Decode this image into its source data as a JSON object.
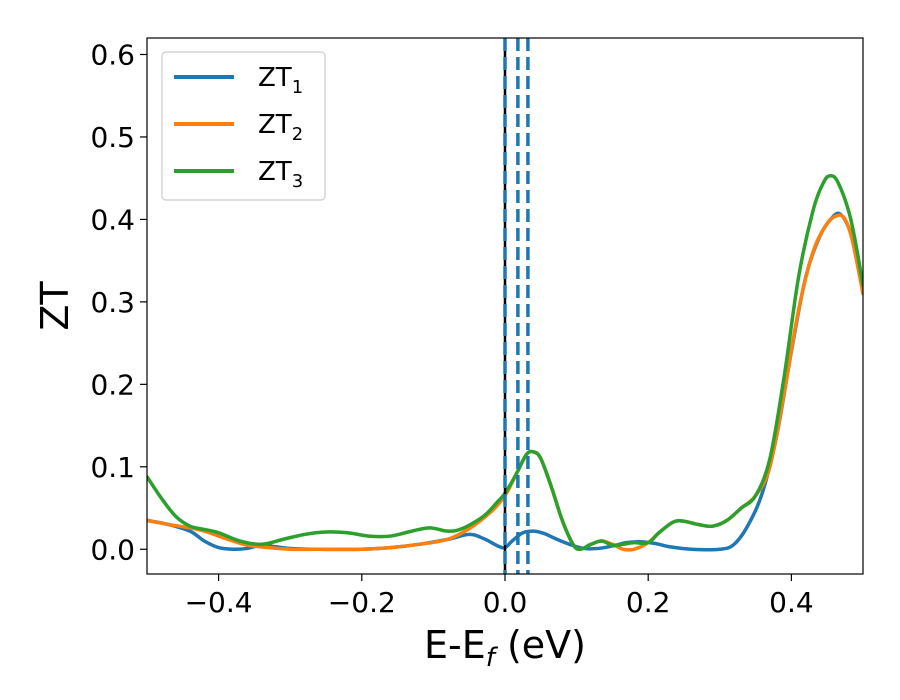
{
  "chart_data": {
    "type": "line",
    "xlabel": "E-E",
    "xlabel_sub": "f",
    "xlabel_unit": " (eV)",
    "ylabel": "ZT",
    "xlim": [
      -0.5,
      0.5
    ],
    "ylim": [
      -0.03,
      0.62
    ],
    "x_ticks": [
      -0.4,
      -0.2,
      0.0,
      0.2,
      0.4
    ],
    "x_tick_labels": [
      "−0.4",
      "−0.2",
      "0.0",
      "0.2",
      "0.4"
    ],
    "y_ticks": [
      0.0,
      0.1,
      0.2,
      0.3,
      0.4,
      0.5,
      0.6
    ],
    "y_tick_labels": [
      "0.0",
      "0.1",
      "0.2",
      "0.3",
      "0.4",
      "0.5",
      "0.6"
    ],
    "grid": false,
    "legend_position": "top-left",
    "series": [
      {
        "name": "ZT",
        "name_sub": "1",
        "color": "#1f77b4",
        "points": [
          [
            -0.5,
            0.035
          ],
          [
            -0.47,
            0.03
          ],
          [
            -0.44,
            0.022
          ],
          [
            -0.42,
            0.01
          ],
          [
            -0.4,
            0.002
          ],
          [
            -0.38,
            0.0
          ],
          [
            -0.36,
            0.001
          ],
          [
            -0.34,
            0.005
          ],
          [
            -0.32,
            0.003
          ],
          [
            -0.3,
            0.001
          ],
          [
            -0.26,
            0.0
          ],
          [
            -0.2,
            0.0
          ],
          [
            -0.16,
            0.002
          ],
          [
            -0.12,
            0.006
          ],
          [
            -0.08,
            0.012
          ],
          [
            -0.05,
            0.018
          ],
          [
            -0.03,
            0.013
          ],
          [
            -0.01,
            0.004
          ],
          [
            0.0,
            0.002
          ],
          [
            0.01,
            0.01
          ],
          [
            0.025,
            0.02
          ],
          [
            0.04,
            0.022
          ],
          [
            0.055,
            0.019
          ],
          [
            0.07,
            0.013
          ],
          [
            0.09,
            0.006
          ],
          [
            0.11,
            0.001
          ],
          [
            0.13,
            0.001
          ],
          [
            0.15,
            0.004
          ],
          [
            0.17,
            0.008
          ],
          [
            0.19,
            0.009
          ],
          [
            0.21,
            0.007
          ],
          [
            0.23,
            0.003
          ],
          [
            0.26,
            0.0
          ],
          [
            0.3,
            0.0
          ],
          [
            0.32,
            0.006
          ],
          [
            0.34,
            0.03
          ],
          [
            0.36,
            0.07
          ],
          [
            0.38,
            0.14
          ],
          [
            0.4,
            0.24
          ],
          [
            0.42,
            0.33
          ],
          [
            0.44,
            0.38
          ],
          [
            0.46,
            0.405
          ],
          [
            0.47,
            0.405
          ],
          [
            0.48,
            0.39
          ],
          [
            0.49,
            0.36
          ],
          [
            0.5,
            0.31
          ]
        ]
      },
      {
        "name": "ZT",
        "name_sub": "2",
        "color": "#ff7f0e",
        "points": [
          [
            -0.5,
            0.035
          ],
          [
            -0.47,
            0.03
          ],
          [
            -0.44,
            0.026
          ],
          [
            -0.42,
            0.022
          ],
          [
            -0.4,
            0.016
          ],
          [
            -0.38,
            0.01
          ],
          [
            -0.36,
            0.005
          ],
          [
            -0.33,
            0.002
          ],
          [
            -0.3,
            0.0
          ],
          [
            -0.26,
            0.0
          ],
          [
            -0.2,
            0.0
          ],
          [
            -0.16,
            0.002
          ],
          [
            -0.12,
            0.006
          ],
          [
            -0.08,
            0.012
          ],
          [
            -0.05,
            0.025
          ],
          [
            -0.02,
            0.045
          ],
          [
            0.0,
            0.065
          ],
          [
            0.015,
            0.09
          ],
          [
            0.03,
            0.115
          ],
          [
            0.04,
            0.118
          ],
          [
            0.05,
            0.11
          ],
          [
            0.065,
            0.075
          ],
          [
            0.08,
            0.035
          ],
          [
            0.095,
            0.006
          ],
          [
            0.105,
            0.0
          ],
          [
            0.12,
            0.006
          ],
          [
            0.135,
            0.01
          ],
          [
            0.15,
            0.006
          ],
          [
            0.165,
            0.0
          ],
          [
            0.18,
            0.0
          ],
          [
            0.2,
            0.008
          ],
          [
            0.215,
            0.02
          ],
          [
            0.235,
            0.033
          ],
          [
            0.25,
            0.034
          ],
          [
            0.27,
            0.03
          ],
          [
            0.29,
            0.028
          ],
          [
            0.31,
            0.035
          ],
          [
            0.33,
            0.05
          ],
          [
            0.35,
            0.065
          ],
          [
            0.37,
            0.1
          ],
          [
            0.39,
            0.19
          ],
          [
            0.41,
            0.29
          ],
          [
            0.43,
            0.36
          ],
          [
            0.45,
            0.395
          ],
          [
            0.465,
            0.405
          ],
          [
            0.475,
            0.4
          ],
          [
            0.485,
            0.375
          ],
          [
            0.5,
            0.31
          ]
        ]
      },
      {
        "name": "ZT",
        "name_sub": "3",
        "color": "#2ca02c",
        "points": [
          [
            -0.5,
            0.088
          ],
          [
            -0.48,
            0.062
          ],
          [
            -0.46,
            0.04
          ],
          [
            -0.44,
            0.028
          ],
          [
            -0.42,
            0.024
          ],
          [
            -0.4,
            0.02
          ],
          [
            -0.37,
            0.01
          ],
          [
            -0.34,
            0.006
          ],
          [
            -0.31,
            0.012
          ],
          [
            -0.28,
            0.018
          ],
          [
            -0.25,
            0.021
          ],
          [
            -0.22,
            0.02
          ],
          [
            -0.19,
            0.016
          ],
          [
            -0.16,
            0.016
          ],
          [
            -0.13,
            0.022
          ],
          [
            -0.105,
            0.026
          ],
          [
            -0.08,
            0.022
          ],
          [
            -0.06,
            0.025
          ],
          [
            -0.03,
            0.04
          ],
          [
            -0.01,
            0.058
          ],
          [
            0.0,
            0.068
          ],
          [
            0.015,
            0.09
          ],
          [
            0.03,
            0.115
          ],
          [
            0.04,
            0.118
          ],
          [
            0.05,
            0.11
          ],
          [
            0.065,
            0.075
          ],
          [
            0.08,
            0.035
          ],
          [
            0.095,
            0.006
          ],
          [
            0.105,
            0.0
          ],
          [
            0.12,
            0.006
          ],
          [
            0.135,
            0.01
          ],
          [
            0.15,
            0.005
          ],
          [
            0.165,
            0.006
          ],
          [
            0.18,
            0.008
          ],
          [
            0.2,
            0.008
          ],
          [
            0.215,
            0.02
          ],
          [
            0.235,
            0.033
          ],
          [
            0.25,
            0.034
          ],
          [
            0.27,
            0.03
          ],
          [
            0.29,
            0.028
          ],
          [
            0.31,
            0.035
          ],
          [
            0.33,
            0.05
          ],
          [
            0.35,
            0.065
          ],
          [
            0.37,
            0.11
          ],
          [
            0.39,
            0.21
          ],
          [
            0.41,
            0.33
          ],
          [
            0.43,
            0.41
          ],
          [
            0.445,
            0.445
          ],
          [
            0.455,
            0.453
          ],
          [
            0.465,
            0.445
          ],
          [
            0.48,
            0.41
          ],
          [
            0.49,
            0.37
          ],
          [
            0.5,
            0.32
          ]
        ]
      }
    ],
    "vlines": [
      {
        "x": 0.0,
        "color": "#000000",
        "style": "solid"
      },
      {
        "x": 0.0,
        "color": "#1f77b4",
        "style": "dashed"
      },
      {
        "x": 0.018,
        "color": "#1f77b4",
        "style": "dashed"
      },
      {
        "x": 0.032,
        "color": "#1f77b4",
        "style": "dashed"
      }
    ]
  }
}
